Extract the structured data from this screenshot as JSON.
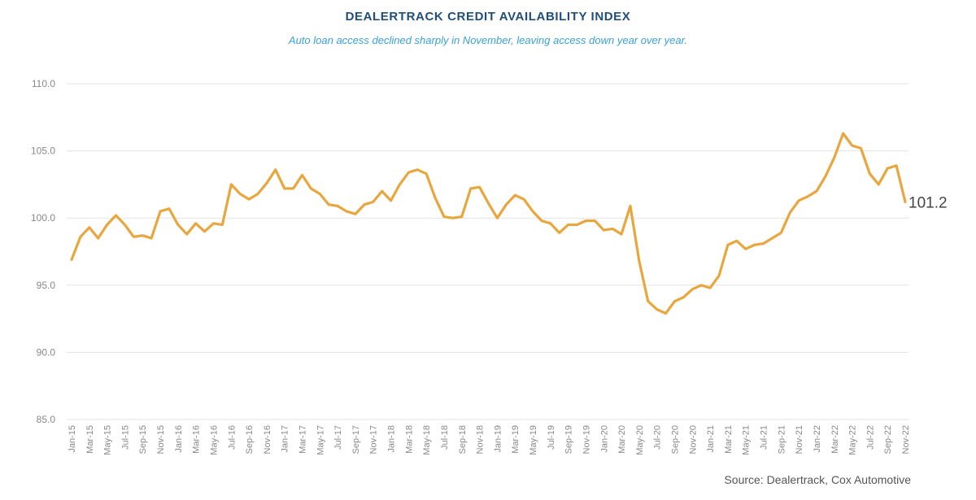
{
  "chart_data": {
    "type": "line",
    "title": "DEALERTRACK CREDIT AVAILABILITY INDEX",
    "subtitle": "Auto loan access declined sharply in November, leaving access down year over year.",
    "source": "Source: Dealertrack, Cox Automotive",
    "xlabel": "",
    "ylabel": "",
    "ylim": [
      85,
      110
    ],
    "yticks": [
      "85.0",
      "90.0",
      "95.0",
      "100.0",
      "105.0",
      "110.0"
    ],
    "grid": true,
    "line_color": "#e8a73e",
    "end_label": "101.2",
    "x": [
      "Jan-15",
      "Feb-15",
      "Mar-15",
      "Apr-15",
      "May-15",
      "Jun-15",
      "Jul-15",
      "Aug-15",
      "Sep-15",
      "Oct-15",
      "Nov-15",
      "Dec-15",
      "Jan-16",
      "Feb-16",
      "Mar-16",
      "Apr-16",
      "May-16",
      "Jun-16",
      "Jul-16",
      "Aug-16",
      "Sep-16",
      "Oct-16",
      "Nov-16",
      "Dec-16",
      "Jan-17",
      "Feb-17",
      "Mar-17",
      "Apr-17",
      "May-17",
      "Jun-17",
      "Jul-17",
      "Aug-17",
      "Sep-17",
      "Oct-17",
      "Nov-17",
      "Dec-17",
      "Jan-18",
      "Feb-18",
      "Mar-18",
      "Apr-18",
      "May-18",
      "Jun-18",
      "Jul-18",
      "Aug-18",
      "Sep-18",
      "Oct-18",
      "Nov-18",
      "Dec-18",
      "Jan-19",
      "Feb-19",
      "Mar-19",
      "Apr-19",
      "May-19",
      "Jun-19",
      "Jul-19",
      "Aug-19",
      "Sep-19",
      "Oct-19",
      "Nov-19",
      "Dec-19",
      "Jan-20",
      "Feb-20",
      "Mar-20",
      "Apr-20",
      "May-20",
      "Jun-20",
      "Jul-20",
      "Aug-20",
      "Sep-20",
      "Oct-20",
      "Nov-20",
      "Dec-20",
      "Jan-21",
      "Feb-21",
      "Mar-21",
      "Apr-21",
      "May-21",
      "Jun-21",
      "Jul-21",
      "Aug-21",
      "Sep-21",
      "Oct-21",
      "Nov-21",
      "Dec-21",
      "Jan-22",
      "Feb-22",
      "Mar-22",
      "Apr-22",
      "May-22",
      "Jun-22",
      "Jul-22",
      "Aug-22",
      "Sep-22",
      "Oct-22",
      "Nov-22"
    ],
    "xtick_labels": [
      "Jan-15",
      "Mar-15",
      "May-15",
      "Jul-15",
      "Sep-15",
      "Nov-15",
      "Jan-16",
      "Mar-16",
      "May-16",
      "Jul-16",
      "Sep-16",
      "Nov-16",
      "Jan-17",
      "Mar-17",
      "May-17",
      "Jul-17",
      "Sep-17",
      "Nov-17",
      "Jan-18",
      "Mar-18",
      "May-18",
      "Jul-18",
      "Sep-18",
      "Nov-18",
      "Jan-19",
      "Mar-19",
      "May-19",
      "Jul-19",
      "Sep-19",
      "Nov-19",
      "Jan-20",
      "Mar-20",
      "May-20",
      "Jul-20",
      "Sep-20",
      "Nov-20",
      "Jan-21",
      "Mar-21",
      "May-21",
      "Jul-21",
      "Sep-21",
      "Nov-21",
      "Jan-22",
      "Mar-22",
      "May-22",
      "Jul-22",
      "Sep-22",
      "Nov-22"
    ],
    "series": [
      {
        "name": "Dealertrack Credit Availability Index",
        "values": [
          96.9,
          98.6,
          99.3,
          98.5,
          99.5,
          100.2,
          99.5,
          98.6,
          98.7,
          98.5,
          100.5,
          100.7,
          99.5,
          98.8,
          99.6,
          99.0,
          99.6,
          99.5,
          102.5,
          101.8,
          101.4,
          101.8,
          102.6,
          103.6,
          102.2,
          102.2,
          103.2,
          102.2,
          101.8,
          101.0,
          100.9,
          100.5,
          100.3,
          101.0,
          101.2,
          102.0,
          101.3,
          102.5,
          103.4,
          103.6,
          103.3,
          101.5,
          100.1,
          100.0,
          100.1,
          102.2,
          102.3,
          101.1,
          100.0,
          101.0,
          101.7,
          101.4,
          100.5,
          99.8,
          99.6,
          98.9,
          99.5,
          99.5,
          99.8,
          99.8,
          99.1,
          99.2,
          98.8,
          100.9,
          96.8,
          93.8,
          93.2,
          92.9,
          93.8,
          94.1,
          94.7,
          95.0,
          94.8,
          95.7,
          98.0,
          98.3,
          97.7,
          98.0,
          98.1,
          98.5,
          98.9,
          100.4,
          101.3,
          101.6,
          102.0,
          103.1,
          104.5,
          106.3,
          105.4,
          105.2,
          103.3,
          102.5,
          103.7,
          103.9,
          101.2
        ]
      }
    ]
  }
}
